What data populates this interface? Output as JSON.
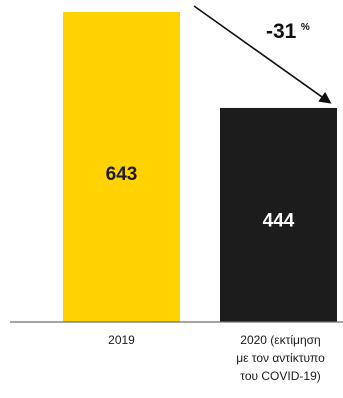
{
  "chart_data": {
    "type": "bar",
    "categories": [
      "2019",
      "2020 (εκτίμηση με τον αντίκτυπο του COVID-19)"
    ],
    "category_lines": [
      [
        "2019"
      ],
      [
        "2020 (εκτίμηση",
        "με τον αντίκτυπο",
        "του COVID-19)"
      ]
    ],
    "values": [
      643,
      444
    ],
    "data_labels": [
      "643",
      "444"
    ],
    "bar_colors": [
      "#FFD200",
      "#1C1C1C"
    ],
    "data_label_colors": [
      "#1C1C1C",
      "#FFFFFF"
    ],
    "ylim": [
      0,
      643
    ],
    "annotation": {
      "text": "-31",
      "suffix": "%",
      "arrow": "from-top-of-first-bar-to-top-of-second-bar"
    },
    "title": "",
    "xlabel": "",
    "ylabel": "",
    "grid": false,
    "legend": "none"
  }
}
